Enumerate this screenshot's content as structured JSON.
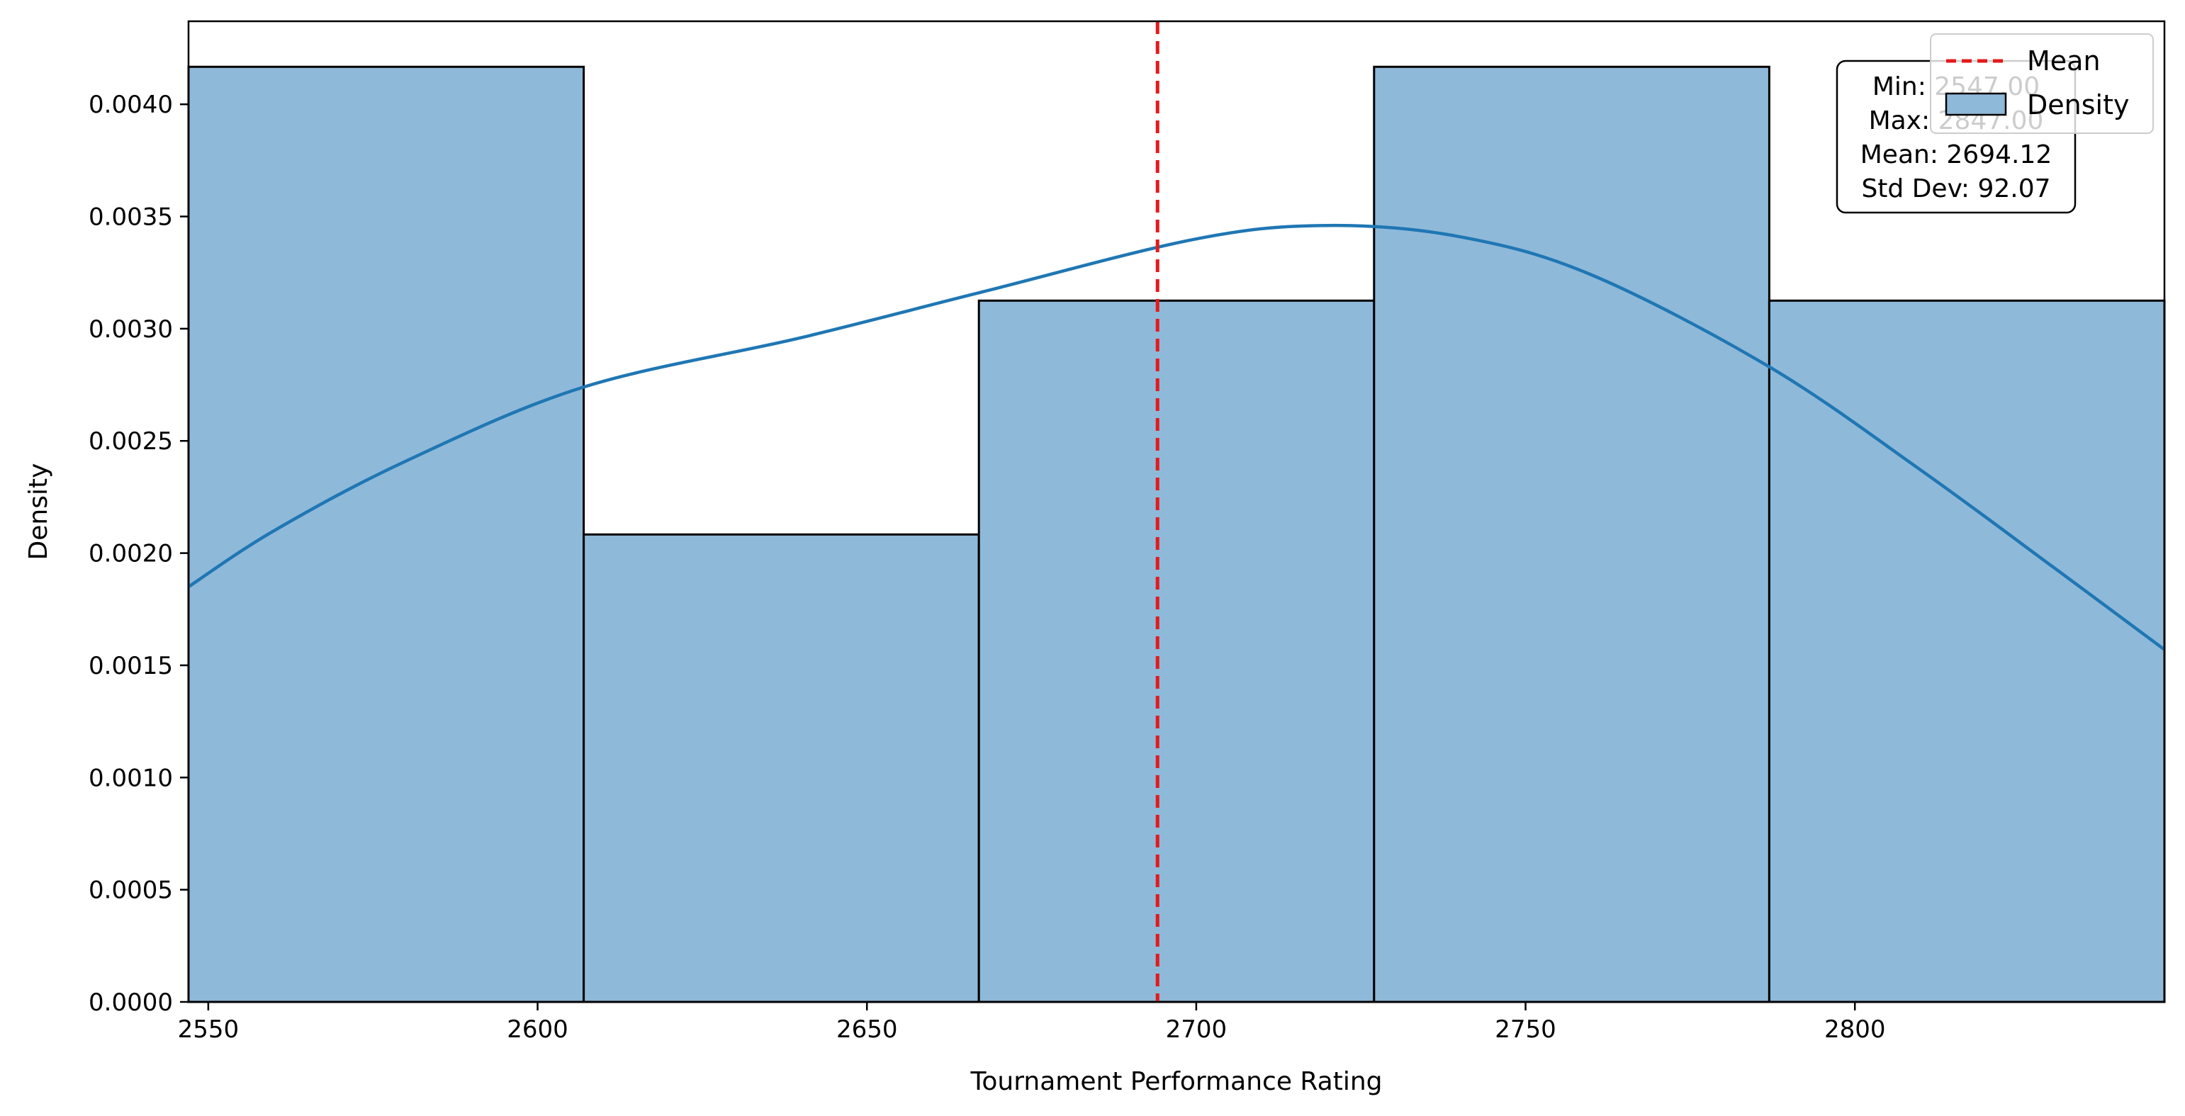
{
  "chart_data": {
    "type": "bar",
    "title": "",
    "xlabel": "Tournament Performance Rating",
    "ylabel": "Density",
    "xlim": [
      2547,
      2847
    ],
    "ylim": [
      0,
      0.00437
    ],
    "grid": false,
    "bins": [
      {
        "x0": 2547,
        "x1": 2607,
        "density": 0.004167
      },
      {
        "x0": 2607,
        "x1": 2667,
        "density": 0.002083
      },
      {
        "x0": 2667,
        "x1": 2727,
        "density": 0.003125
      },
      {
        "x0": 2727,
        "x1": 2787,
        "density": 0.004167
      },
      {
        "x0": 2787,
        "x1": 2847,
        "density": 0.003125
      }
    ],
    "kde": {
      "x": [
        2547,
        2560,
        2580,
        2607,
        2640,
        2667,
        2700,
        2720,
        2740,
        2760,
        2787,
        2810,
        2830,
        2847
      ],
      "y": [
        0.00185,
        0.0021,
        0.00241,
        0.00274,
        0.00296,
        0.00316,
        0.0034,
        0.00346,
        0.00341,
        0.00324,
        0.00283,
        0.00237,
        0.00194,
        0.00157
      ]
    },
    "mean_line": 2694.12,
    "x_ticks": [
      2550,
      2600,
      2650,
      2700,
      2750,
      2800
    ],
    "y_ticks": [
      0.0,
      0.0005,
      0.001,
      0.0015,
      0.002,
      0.0025,
      0.003,
      0.0035,
      0.004
    ],
    "x_tick_labels": [
      "2550",
      "2600",
      "2650",
      "2700",
      "2750",
      "2800"
    ],
    "y_tick_labels": [
      "0.0000",
      "0.0005",
      "0.0010",
      "0.0015",
      "0.0020",
      "0.0025",
      "0.0030",
      "0.0035",
      "0.0040"
    ],
    "legend": {
      "placement": "upper-right",
      "entries": [
        {
          "label": "Mean",
          "kind": "dashed-line",
          "color": "#e41a1c"
        },
        {
          "label": "Density",
          "kind": "patch",
          "color": "#8fb9d9"
        }
      ]
    },
    "stats_box": {
      "lines": [
        "Min: 2547.00",
        "Max: 2847.00",
        "Mean: 2694.12",
        "Std Dev: 92.07"
      ]
    },
    "colors": {
      "bar_fill": "#8fb9d9",
      "bar_edge": "#000000",
      "kde": "#1f77b4",
      "mean": "#e41a1c"
    }
  }
}
